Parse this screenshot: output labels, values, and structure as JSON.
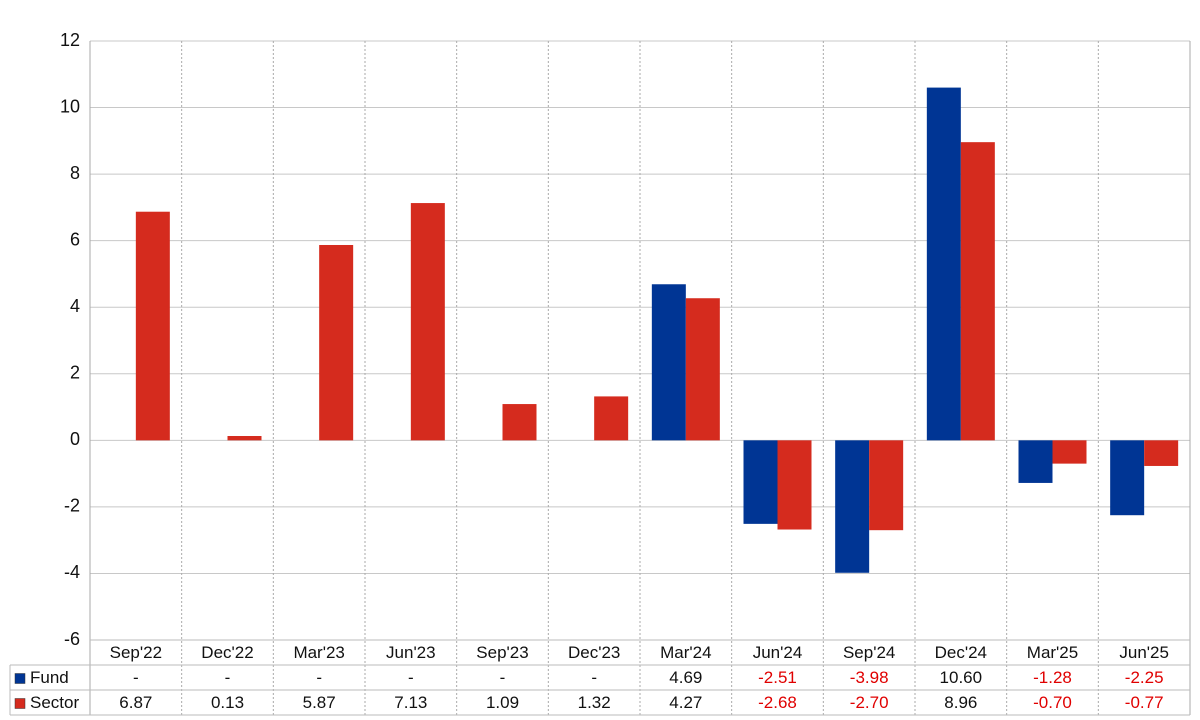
{
  "chart_data": {
    "type": "bar",
    "categories": [
      "Sep'22",
      "Dec'22",
      "Mar'23",
      "Jun'23",
      "Sep'23",
      "Dec'23",
      "Mar'24",
      "Jun'24",
      "Sep'24",
      "Dec'24",
      "Mar'25",
      "Jun'25"
    ],
    "series": [
      {
        "name": "Fund",
        "color": "#003594",
        "values": [
          null,
          null,
          null,
          null,
          null,
          null,
          4.69,
          -2.51,
          -3.98,
          10.6,
          -1.28,
          -2.25
        ],
        "value_labels": [
          "-",
          "-",
          "-",
          "-",
          "-",
          "-",
          "4.69",
          "-2.51",
          "-3.98",
          "10.60",
          "-1.28",
          "-2.25"
        ]
      },
      {
        "name": "Sector",
        "color": "#d52b1e",
        "values": [
          6.87,
          0.13,
          5.87,
          7.13,
          1.09,
          1.32,
          4.27,
          -2.68,
          -2.7,
          8.96,
          -0.7,
          -0.77
        ],
        "value_labels": [
          "6.87",
          "0.13",
          "5.87",
          "7.13",
          "1.09",
          "1.32",
          "4.27",
          "-2.68",
          "-2.70",
          "8.96",
          "-0.70",
          "-0.77"
        ]
      }
    ],
    "ylim": [
      -6,
      12
    ],
    "yticks": [
      -6,
      -4,
      -2,
      0,
      2,
      4,
      6,
      8,
      10,
      12
    ],
    "grid": true
  }
}
